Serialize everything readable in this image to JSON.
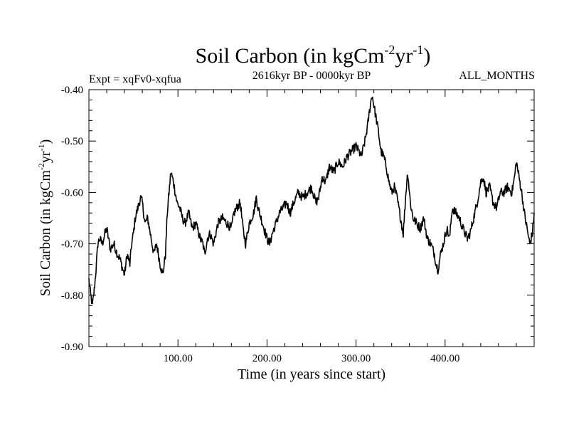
{
  "chart_data": {
    "type": "line",
    "title": "Soil Carbon (in kgCm",
    "title_sup1": "-2",
    "title_mid": "yr",
    "title_sup2": "-1",
    "title_end": ")",
    "subtitle_left": "Expt = xqFv0-xqfua",
    "subtitle_center": "2616kyr BP - 0000kyr BP",
    "subtitle_right": "ALL_MONTHS",
    "xlabel": "Time (in years since start)",
    "ylabel": "Soil Carbon (in kgCm",
    "ylabel_sup1": "-2",
    "ylabel_mid": "yr",
    "ylabel_sup2": "-1",
    "ylabel_end": ")",
    "xlim": [
      0,
      500
    ],
    "ylim": [
      -0.9,
      -0.4
    ],
    "x_ticks": [
      100,
      200,
      300,
      400
    ],
    "x_tick_labels": [
      "100.00",
      "200.00",
      "300.00",
      "400.00"
    ],
    "y_ticks": [
      -0.9,
      -0.8,
      -0.7,
      -0.6,
      -0.5,
      -0.4
    ],
    "y_tick_labels": [
      "-0.90",
      "-0.80",
      "-0.70",
      "-0.60",
      "-0.50",
      "-0.40"
    ],
    "line_color": "#000000",
    "series": [
      {
        "name": "Soil Carbon",
        "x": [
          0,
          2,
          4,
          6,
          8,
          10,
          12,
          15,
          18,
          20,
          24,
          28,
          32,
          35,
          38,
          40,
          43,
          46,
          48,
          50,
          52,
          55,
          58,
          60,
          63,
          66,
          70,
          73,
          76,
          80,
          83,
          86,
          88,
          90,
          92,
          95,
          97,
          99,
          102,
          105,
          108,
          112,
          116,
          120,
          125,
          128,
          130,
          133,
          136,
          140,
          145,
          150,
          155,
          160,
          163,
          166,
          170,
          173,
          176,
          180,
          185,
          188,
          190,
          195,
          200,
          203,
          206,
          210,
          214,
          218,
          222,
          226,
          230,
          235,
          240,
          245,
          250,
          255,
          258,
          262,
          266,
          270,
          275,
          280,
          285,
          290,
          295,
          300,
          303,
          306,
          310,
          313,
          316,
          318,
          320,
          322,
          325,
          328,
          331,
          334,
          337,
          340,
          343,
          346,
          350,
          353,
          356,
          358,
          361,
          364,
          368,
          372,
          376,
          380,
          384,
          388,
          390,
          392,
          395,
          398,
          402,
          405,
          408,
          412,
          416,
          420,
          425,
          428,
          432,
          436,
          440,
          443,
          446,
          450,
          454,
          458,
          462,
          466,
          470,
          475,
          478,
          480,
          483,
          486,
          489,
          492,
          495,
          498,
          500
        ],
        "values": [
          -0.77,
          -0.8,
          -0.82,
          -0.79,
          -0.75,
          -0.7,
          -0.69,
          -0.7,
          -0.68,
          -0.67,
          -0.71,
          -0.7,
          -0.72,
          -0.73,
          -0.75,
          -0.76,
          -0.72,
          -0.74,
          -0.7,
          -0.68,
          -0.65,
          -0.63,
          -0.61,
          -0.62,
          -0.66,
          -0.65,
          -0.69,
          -0.72,
          -0.7,
          -0.74,
          -0.76,
          -0.72,
          -0.64,
          -0.6,
          -0.56,
          -0.58,
          -0.6,
          -0.62,
          -0.63,
          -0.65,
          -0.66,
          -0.64,
          -0.67,
          -0.66,
          -0.69,
          -0.7,
          -0.72,
          -0.69,
          -0.68,
          -0.7,
          -0.66,
          -0.65,
          -0.66,
          -0.67,
          -0.64,
          -0.63,
          -0.62,
          -0.67,
          -0.7,
          -0.66,
          -0.64,
          -0.61,
          -0.63,
          -0.66,
          -0.69,
          -0.7,
          -0.68,
          -0.66,
          -0.64,
          -0.63,
          -0.62,
          -0.64,
          -0.62,
          -0.6,
          -0.61,
          -0.6,
          -0.59,
          -0.62,
          -0.61,
          -0.57,
          -0.58,
          -0.55,
          -0.56,
          -0.54,
          -0.55,
          -0.53,
          -0.52,
          -0.51,
          -0.52,
          -0.53,
          -0.5,
          -0.47,
          -0.43,
          -0.41,
          -0.43,
          -0.45,
          -0.48,
          -0.52,
          -0.53,
          -0.55,
          -0.58,
          -0.6,
          -0.59,
          -0.61,
          -0.65,
          -0.68,
          -0.6,
          -0.56,
          -0.62,
          -0.65,
          -0.66,
          -0.67,
          -0.65,
          -0.69,
          -0.7,
          -0.72,
          -0.74,
          -0.75,
          -0.72,
          -0.7,
          -0.67,
          -0.69,
          -0.63,
          -0.64,
          -0.65,
          -0.67,
          -0.69,
          -0.68,
          -0.65,
          -0.62,
          -0.58,
          -0.57,
          -0.6,
          -0.59,
          -0.62,
          -0.63,
          -0.6,
          -0.6,
          -0.59,
          -0.6,
          -0.57,
          -0.54,
          -0.57,
          -0.6,
          -0.64,
          -0.67,
          -0.7,
          -0.68,
          -0.64
        ]
      }
    ]
  }
}
